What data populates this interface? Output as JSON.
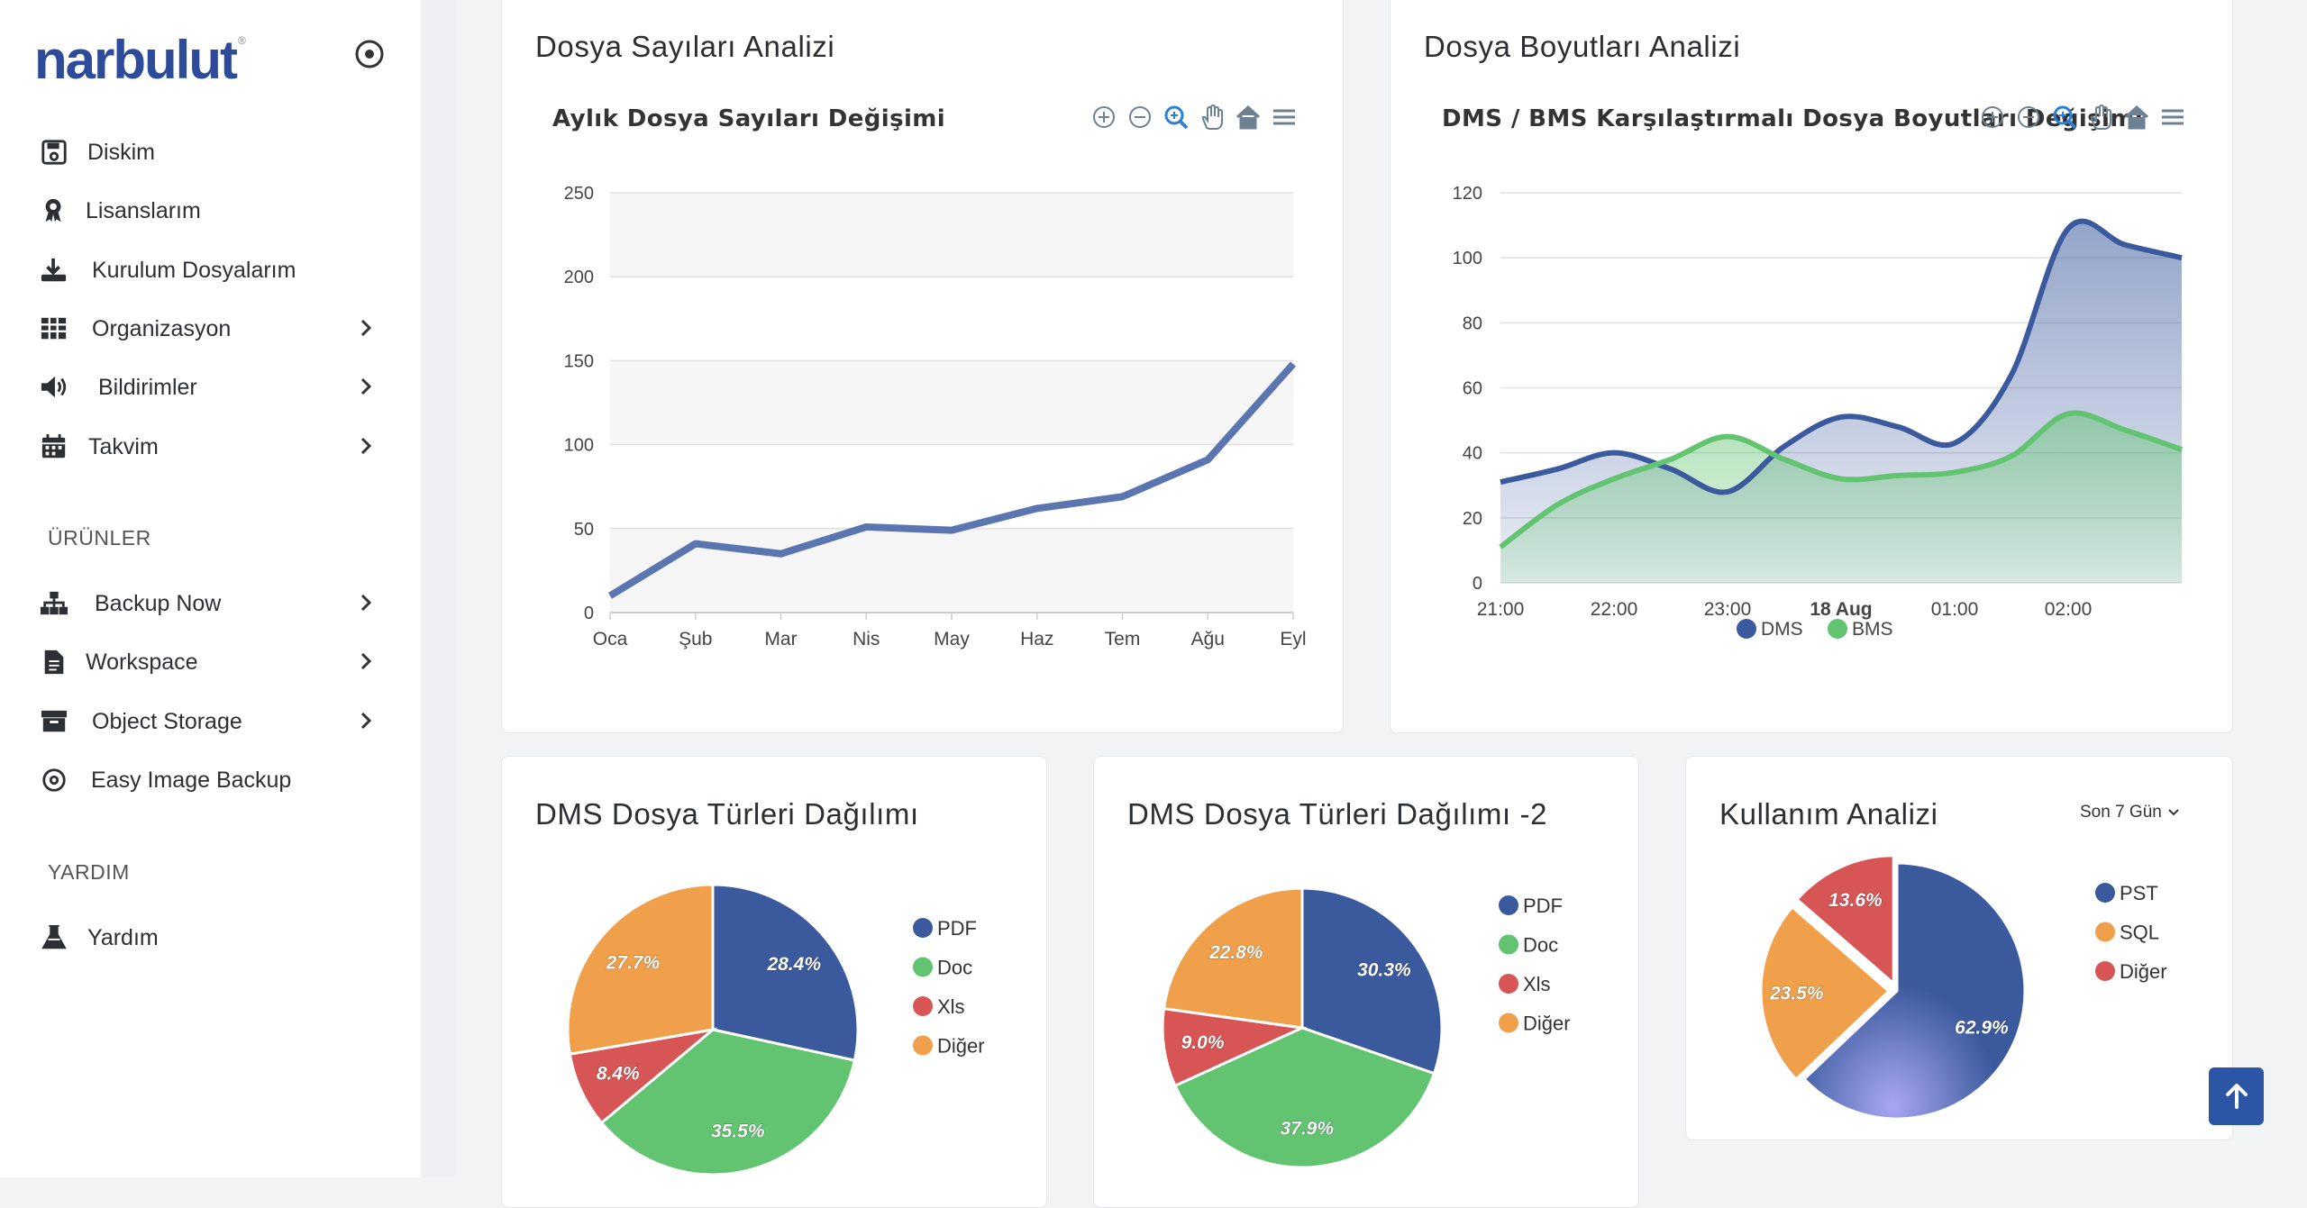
{
  "brand": {
    "name": "narbulut",
    "mark": "®"
  },
  "sidebar": {
    "items": [
      {
        "label": "Diskim",
        "icon": "save-icon",
        "chevron": false
      },
      {
        "label": "Lisanslarım",
        "icon": "award-icon",
        "chevron": false
      },
      {
        "label": "Kurulum Dosyalarım",
        "icon": "download-icon",
        "chevron": false
      },
      {
        "label": "Organizasyon",
        "icon": "table-icon",
        "chevron": true
      },
      {
        "label": "Bildirimler",
        "icon": "volume-icon",
        "chevron": true
      },
      {
        "label": "Takvim",
        "icon": "calendar-icon",
        "chevron": true
      }
    ],
    "section_products": "ÜRÜNLER",
    "products": [
      {
        "label": "Backup Now",
        "icon": "sitemap-icon",
        "chevron": true
      },
      {
        "label": "Workspace",
        "icon": "file-icon",
        "chevron": true
      },
      {
        "label": "Object Storage",
        "icon": "archive-icon",
        "chevron": true
      },
      {
        "label": "Easy Image Backup",
        "icon": "disc-icon",
        "chevron": false
      }
    ],
    "section_help": "YARDIM",
    "help": [
      {
        "label": "Yardım",
        "icon": "flask-icon",
        "chevron": false
      }
    ]
  },
  "cards": {
    "file_counts": {
      "title": "Dosya Sayıları Analizi",
      "subtitle": "Aylık Dosya Sayıları Değişimi"
    },
    "file_sizes": {
      "title": "Dosya Boyutları Analizi",
      "subtitle": "DMS / BMS Karşılaştırmalı Dosya Boyutları Değişimi"
    },
    "dms_types": {
      "title": "DMS Dosya Türleri Dağılımı"
    },
    "dms_types2": {
      "title": "DMS Dosya Türleri Dağılımı -2"
    },
    "usage": {
      "title": "Kullanım Analizi",
      "period": "Son 7 Gün"
    }
  },
  "colors": {
    "blue": "#3b5a9d",
    "green": "#62c370",
    "red": "#d85555",
    "orange": "#f0a04b",
    "line": "#5a75b0"
  },
  "chart_data": [
    {
      "type": "line",
      "title": "Aylık Dosya Sayıları Değişimi",
      "categories": [
        "Oca",
        "Şub",
        "Mar",
        "Nis",
        "May",
        "Haz",
        "Tem",
        "Ağu",
        "Eyl"
      ],
      "series": [
        {
          "values": [
            10,
            41,
            35,
            51,
            49,
            62,
            69,
            91,
            148
          ]
        }
      ],
      "ylim": [
        0,
        250
      ],
      "yticks": [
        "0",
        "50",
        "100",
        "150",
        "200",
        "250"
      ],
      "grid": true
    },
    {
      "type": "area",
      "title": "DMS / BMS Karşılaştırmalı Dosya Boyutları Değişimi",
      "x": [
        "21:00",
        "21:30",
        "22:00",
        "22:30",
        "23:00",
        "23:30",
        "00:00",
        "00:30",
        "01:00",
        "01:30",
        "02:00",
        "02:30",
        "03:00"
      ],
      "xticks": [
        "21:00",
        "22:00",
        "23:00",
        "18 Aug",
        "01:00",
        "02:00"
      ],
      "series": [
        {
          "name": "DMS",
          "values": [
            31,
            35,
            40,
            35,
            28,
            42,
            51,
            48,
            43,
            64,
            109,
            104,
            100
          ]
        },
        {
          "name": "BMS",
          "values": [
            11,
            24,
            32,
            38,
            45,
            38,
            32,
            33,
            34,
            39,
            52,
            47,
            41
          ]
        }
      ],
      "ylim": [
        0,
        120
      ],
      "yticks": [
        "0",
        "20",
        "40",
        "60",
        "80",
        "100",
        "120"
      ],
      "legend": "bottom"
    },
    {
      "type": "pie",
      "title": "DMS Dosya Türleri Dağılımı",
      "labels": [
        "PDF",
        "Doc",
        "Xls",
        "Diğer"
      ],
      "values": [
        28.4,
        35.5,
        8.4,
        27.7
      ],
      "value_labels": [
        "28.4%",
        "35.5%",
        "8.4%",
        "27.7%"
      ],
      "legend": "right"
    },
    {
      "type": "pie",
      "title": "DMS Dosya Türleri Dağılımı -2",
      "labels": [
        "PDF",
        "Doc",
        "Xls",
        "Diğer"
      ],
      "values": [
        30.3,
        37.9,
        9.0,
        22.8
      ],
      "value_labels": [
        "30.3%",
        "37.9%",
        "9.0%",
        "22.8%"
      ],
      "legend": "right"
    },
    {
      "type": "pie",
      "title": "Kullanım Analizi",
      "labels": [
        "PST",
        "SQL",
        "Diğer"
      ],
      "values": [
        62.9,
        23.5,
        13.6
      ],
      "value_labels": [
        "62.9%",
        "23.5%",
        "13.6%"
      ],
      "legend": "right"
    }
  ]
}
